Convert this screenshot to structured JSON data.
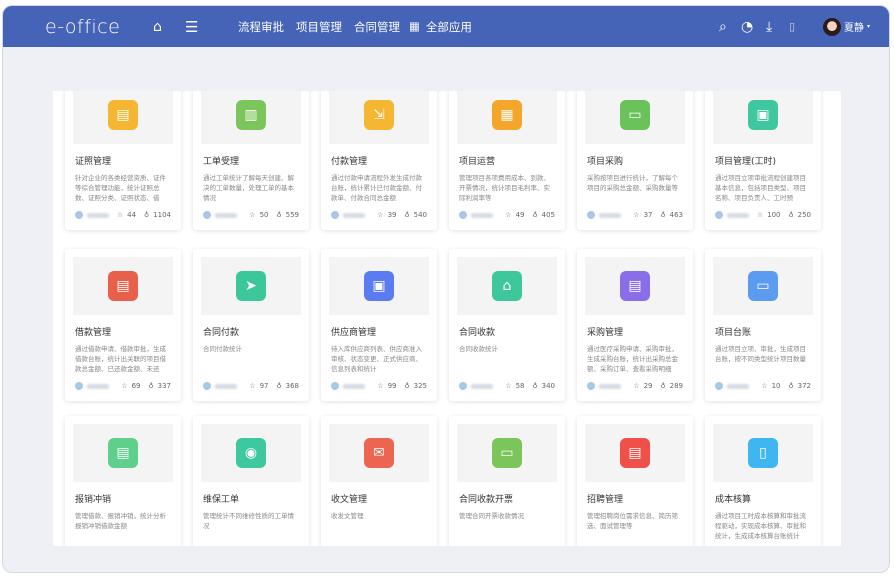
{
  "header": {
    "logo": "e-office",
    "nav": [
      "流程审批",
      "项目管理",
      "合同管理"
    ],
    "all_apps": "全部应用",
    "user": "夏静",
    "accent": "#4563b7"
  },
  "icons": {
    "home": "home-icon",
    "menu": "menu-icon",
    "search": "search-icon",
    "clock": "clock-icon",
    "download": "download-icon",
    "doc": "document-icon",
    "grid": "grid-icon"
  },
  "cards": [
    {
      "title": "证照管理",
      "desc": "针对企业的各类经营资质、证件等综合管理功能，统计证照总数、证照分类、证照状态、借用...",
      "stars": "44",
      "uses": "1104",
      "color": "#f5b731"
    },
    {
      "title": "工单受理",
      "desc": "通过工单统计了解每天创建、解决的工单数量，处理工单的基本情况",
      "stars": "50",
      "uses": "559",
      "color": "#7bc55a"
    },
    {
      "title": "付款管理",
      "desc": "通过付款申请流程外发生成付款台账，统计累计已付款金额、付款单、付款合同总金额",
      "stars": "39",
      "uses": "540",
      "color": "#f5b731"
    },
    {
      "title": "项目运营",
      "desc": "管理项目各项费用成本、到款、开票情况，统计项目毛利率、实际利润率等",
      "stars": "49",
      "uses": "405",
      "color": "#f4a62a"
    },
    {
      "title": "项目采购",
      "desc": "采购按项目进行统计，了解每个项目的采购总金额、采购数量等",
      "stars": "37",
      "uses": "463",
      "color": "#6cc25a"
    },
    {
      "title": "项目管理(工时)",
      "desc": "通过项目立项审批流程创建项目基本信息，包括项目类型、项目名称、项目负责人、工时预算、...",
      "stars": "100",
      "uses": "250",
      "color": "#3fc8a0"
    },
    {
      "title": "借款管理",
      "desc": "通过借款申请、借款审批，生成借款台账，统计出关联的项目借款总金额、已还款金额、未还款...",
      "stars": "69",
      "uses": "337",
      "color": "#e8604a"
    },
    {
      "title": "合同付款",
      "desc": "合同付款统计",
      "stars": "97",
      "uses": "368",
      "color": "#3cc79b"
    },
    {
      "title": "供应商管理",
      "desc": "待入库供应商列表、供应商准入审核、状态变更、正式供应商、信息列表和统计",
      "stars": "99",
      "uses": "325",
      "color": "#5b7cf0"
    },
    {
      "title": "合同收款",
      "desc": "合同收款统计",
      "stars": "58",
      "uses": "340",
      "color": "#3fc79c"
    },
    {
      "title": "采购管理",
      "desc": "通过医疗采购申请、采购审批，生成采购台账，统计出采购总金额、采购订单、查看采购明细",
      "stars": "29",
      "uses": "289",
      "color": "#8a6ee8"
    },
    {
      "title": "项目台账",
      "desc": "通过项目立项、审批，生成项目台账，按不同类型统计项目数量",
      "stars": "10",
      "uses": "372",
      "color": "#5b9cf0"
    },
    {
      "title": "报销冲销",
      "desc": "管理借款、报销冲销，统计分析报销冲销借款金额",
      "stars": "",
      "uses": "",
      "color": "#5fcf8c"
    },
    {
      "title": "维保工单",
      "desc": "管理统计不同维修性质的工单情况",
      "stars": "",
      "uses": "",
      "color": "#3ec8a0"
    },
    {
      "title": "收文管理",
      "desc": "收发文管理",
      "stars": "",
      "uses": "",
      "color": "#ec6550"
    },
    {
      "title": "合同收款开票",
      "desc": "管理合同开票收款情况",
      "stars": "",
      "uses": "",
      "color": "#7bc55a"
    },
    {
      "title": "招聘管理",
      "desc": "管理招聘岗位需求信息、简历筛选、面试管理等",
      "stars": "",
      "uses": "",
      "color": "#f0504a"
    },
    {
      "title": "成本核算",
      "desc": "通过项目工时成本核算和审批流程驱动，实现成本核算、审批和统计，生成成本核算台账统计",
      "stars": "",
      "uses": "",
      "color": "#3fb6f0"
    }
  ]
}
